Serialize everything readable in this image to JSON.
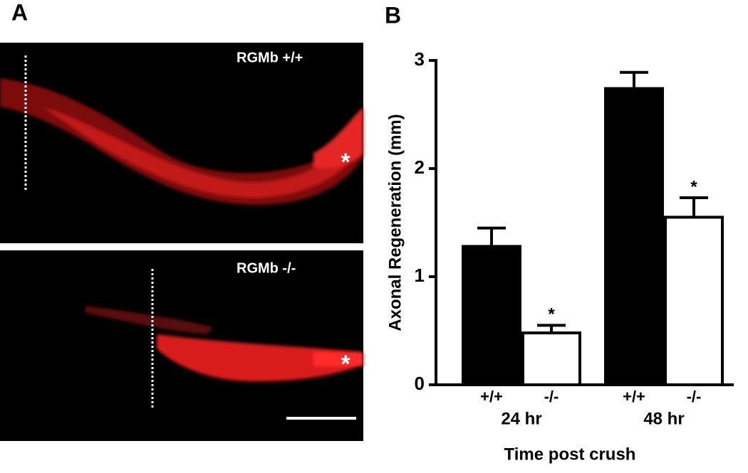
{
  "panel_a": {
    "label": "A",
    "images": [
      {
        "caption": "RGMb +/+",
        "marker": "*"
      },
      {
        "caption": "RGMb -/-",
        "marker": "*"
      }
    ]
  },
  "chart_data": {
    "type": "bar",
    "panel_label": "B",
    "y_label": "Axonal Regeneration (mm)",
    "x_label": "Time post crush",
    "categories": [
      "+/+",
      "-/-",
      "+/+",
      "-/-"
    ],
    "groups": [
      "24 hr",
      "48 hr"
    ],
    "values": [
      1.28,
      0.48,
      2.74,
      1.55
    ],
    "errors": [
      0.17,
      0.07,
      0.15,
      0.18
    ],
    "significance": [
      null,
      "*",
      null,
      "*"
    ],
    "colors": [
      "#000000",
      "#ffffff",
      "#000000",
      "#ffffff"
    ],
    "ylim": [
      0,
      3
    ],
    "yticks": [
      0,
      1,
      2,
      3
    ]
  }
}
